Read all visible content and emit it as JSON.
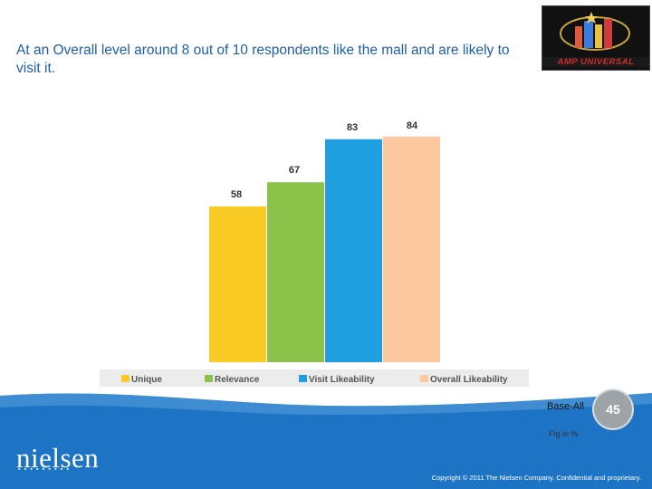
{
  "headline": "At an Overall level around 8 out of 10 respondents like the mall and are likely to visit it.",
  "logo": {
    "text": "AMP UNIVERSAL"
  },
  "chart_data": {
    "type": "bar",
    "categories": [
      "Unique",
      "Relevance",
      "Visit Likeability",
      "Overall Likeability"
    ],
    "values": [
      58,
      67,
      83,
      84
    ],
    "colors": [
      "#fbcb25",
      "#8bc34a",
      "#1f9ee0",
      "#fbc8a0"
    ],
    "ylim": [
      0,
      90
    ],
    "grid": false,
    "legend_position": "bottom",
    "legend": [
      "Unique",
      "Relevance",
      "Visit Likeability",
      "Overall Likeability"
    ]
  },
  "footer": {
    "base": "Base-All",
    "fig_note": "Fig in %",
    "page_number": "45",
    "brand": "nielsen",
    "brand_dots": "▪▪▪▪▪▪▪▪▪",
    "copyright": "Copyright © 2011 The Nielsen Company. Confidential and proprietary.",
    "band_color": "#1d74c4"
  }
}
